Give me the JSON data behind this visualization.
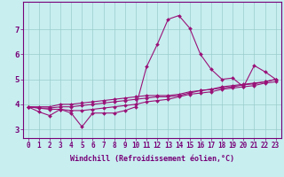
{
  "title": "",
  "xlabel": "Windchill (Refroidissement éolien,°C)",
  "ylabel": "",
  "background_color": "#c8eef0",
  "line_color": "#991177",
  "grid_color": "#99cccc",
  "axis_color": "#770077",
  "x_ticks": [
    0,
    1,
    2,
    3,
    4,
    5,
    6,
    7,
    8,
    9,
    10,
    11,
    12,
    13,
    14,
    15,
    16,
    17,
    18,
    19,
    20,
    21,
    22,
    23
  ],
  "y_ticks": [
    3,
    4,
    5,
    6,
    7
  ],
  "xlim": [
    -0.5,
    23.5
  ],
  "ylim": [
    2.65,
    8.1
  ],
  "series": [
    [
      3.9,
      3.7,
      3.55,
      3.8,
      3.65,
      3.1,
      3.65,
      3.65,
      3.65,
      3.75,
      3.9,
      5.5,
      6.4,
      7.4,
      7.55,
      7.05,
      6.0,
      5.4,
      5.0,
      5.05,
      4.7,
      5.55,
      5.3,
      5.0
    ],
    [
      3.9,
      3.85,
      3.85,
      3.9,
      3.9,
      3.95,
      4.0,
      4.05,
      4.1,
      4.15,
      4.2,
      4.25,
      4.3,
      4.3,
      4.35,
      4.45,
      4.55,
      4.6,
      4.7,
      4.75,
      4.8,
      4.85,
      4.9,
      5.0
    ],
    [
      3.9,
      3.85,
      3.8,
      3.8,
      3.75,
      3.75,
      3.8,
      3.85,
      3.9,
      3.95,
      4.0,
      4.1,
      4.15,
      4.2,
      4.3,
      4.4,
      4.45,
      4.5,
      4.6,
      4.65,
      4.7,
      4.75,
      4.85,
      4.9
    ],
    [
      3.9,
      3.9,
      3.9,
      4.0,
      4.0,
      4.05,
      4.1,
      4.15,
      4.2,
      4.25,
      4.3,
      4.35,
      4.35,
      4.35,
      4.4,
      4.5,
      4.55,
      4.6,
      4.65,
      4.7,
      4.78,
      4.82,
      4.9,
      5.0
    ]
  ],
  "tick_fontsize": 5.5,
  "xlabel_fontsize": 6.0
}
